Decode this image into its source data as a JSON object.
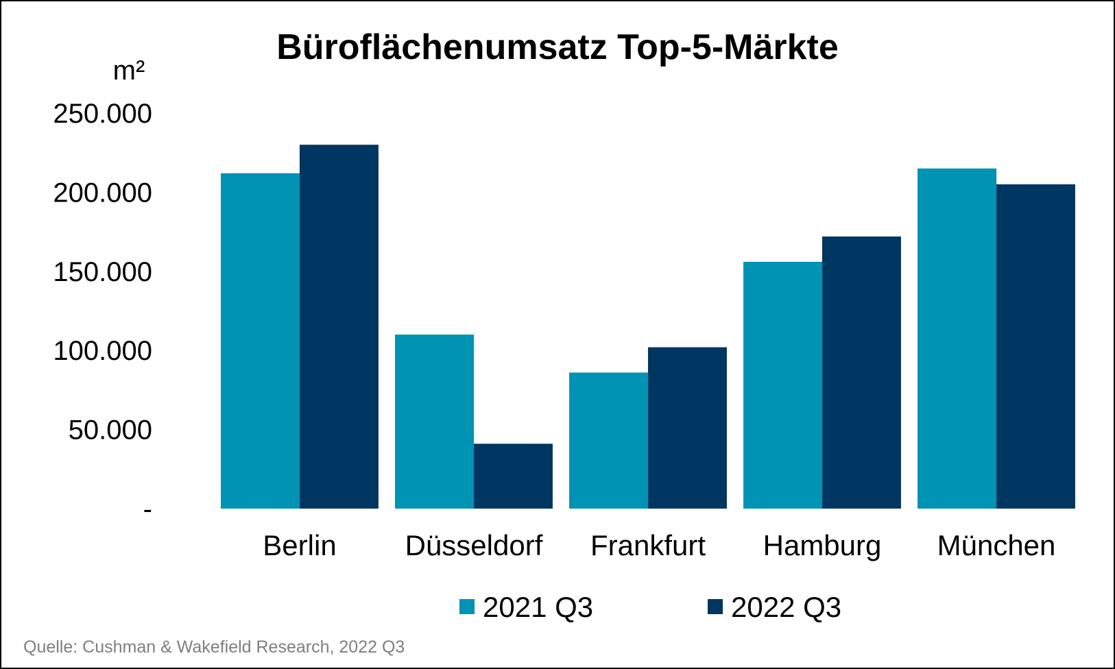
{
  "chart_data": {
    "type": "bar",
    "title": "Büroflächenumsatz Top-5-Märkte",
    "ylabel": "m²",
    "categories": [
      "Berlin",
      "Düsseldorf",
      "Frankfurt",
      "Hamburg",
      "München"
    ],
    "series": [
      {
        "name": "2021 Q3",
        "color": "#0093B4",
        "values": [
          212000,
          110000,
          86000,
          156000,
          215000
        ]
      },
      {
        "name": "2022 Q3",
        "color": "#003662",
        "values": [
          230000,
          41000,
          102000,
          172000,
          205000
        ]
      }
    ],
    "ylim": [
      0,
      250000
    ],
    "yticks": [
      {
        "value": 0,
        "label": "-"
      },
      {
        "value": 50000,
        "label": "50.000"
      },
      {
        "value": 100000,
        "label": "100.000"
      },
      {
        "value": 150000,
        "label": "150.000"
      },
      {
        "value": 200000,
        "label": "200.000"
      },
      {
        "value": 250000,
        "label": "250.000"
      }
    ],
    "grid": false,
    "legend": "bottom",
    "source": "Quelle: Cushman & Wakefield Research, 2022 Q3"
  }
}
